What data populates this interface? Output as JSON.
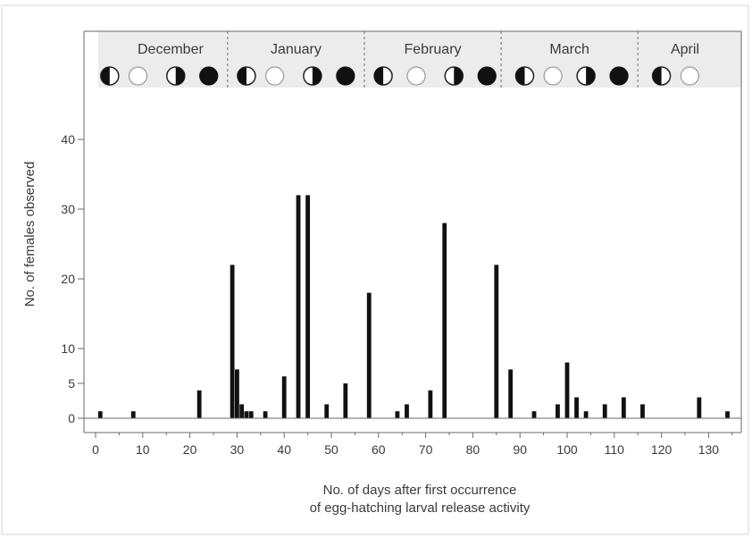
{
  "chart_data": {
    "type": "bar",
    "title": "",
    "xlabel_lines": [
      "No. of days after first occurrence",
      "of egg-hatching larval release activity"
    ],
    "ylabel": "No. of females observed",
    "xlim": [
      0,
      135
    ],
    "ylim": [
      0,
      40
    ],
    "x_ticks": [
      0,
      10,
      20,
      30,
      40,
      50,
      60,
      70,
      80,
      90,
      100,
      110,
      120,
      130
    ],
    "y_ticks": [
      0,
      10,
      20,
      30,
      40
    ],
    "y_tick_labels": [
      "0",
      "5",
      "10",
      "20",
      "30",
      "40"
    ],
    "y_tick_label_values": [
      0,
      5,
      10,
      20,
      30,
      40
    ],
    "y_scale": "piecewise: 0-10 occupies same height as 10-20",
    "grid": false,
    "months": [
      "December",
      "January",
      "February",
      "March",
      "April"
    ],
    "month_boundaries": [
      28,
      57,
      86,
      115
    ],
    "moon_phases": [
      {
        "day": 3,
        "phase": "first-quarter"
      },
      {
        "day": 9,
        "phase": "full"
      },
      {
        "day": 17,
        "phase": "last-quarter"
      },
      {
        "day": 24,
        "phase": "new"
      },
      {
        "day": 32,
        "phase": "first-quarter"
      },
      {
        "day": 38,
        "phase": "full"
      },
      {
        "day": 46,
        "phase": "last-quarter"
      },
      {
        "day": 53,
        "phase": "new"
      },
      {
        "day": 61,
        "phase": "first-quarter"
      },
      {
        "day": 68,
        "phase": "full"
      },
      {
        "day": 76,
        "phase": "last-quarter"
      },
      {
        "day": 83,
        "phase": "new"
      },
      {
        "day": 91,
        "phase": "first-quarter"
      },
      {
        "day": 97,
        "phase": "full"
      },
      {
        "day": 104,
        "phase": "last-quarter"
      },
      {
        "day": 111,
        "phase": "new"
      },
      {
        "day": 120,
        "phase": "first-quarter"
      },
      {
        "day": 126,
        "phase": "full"
      }
    ],
    "x": [
      1,
      8,
      22,
      29,
      30,
      31,
      32,
      33,
      36,
      40,
      43,
      45,
      49,
      53,
      58,
      64,
      66,
      71,
      74,
      85,
      88,
      93,
      98,
      100,
      102,
      104,
      108,
      112,
      116,
      128,
      134
    ],
    "values": [
      1,
      1,
      4,
      22,
      7,
      2,
      1,
      1,
      1,
      6,
      32,
      32,
      2,
      5,
      18,
      1,
      2,
      4,
      28,
      22,
      7,
      1,
      2,
      8,
      3,
      1,
      2,
      3,
      2,
      3,
      1
    ]
  }
}
